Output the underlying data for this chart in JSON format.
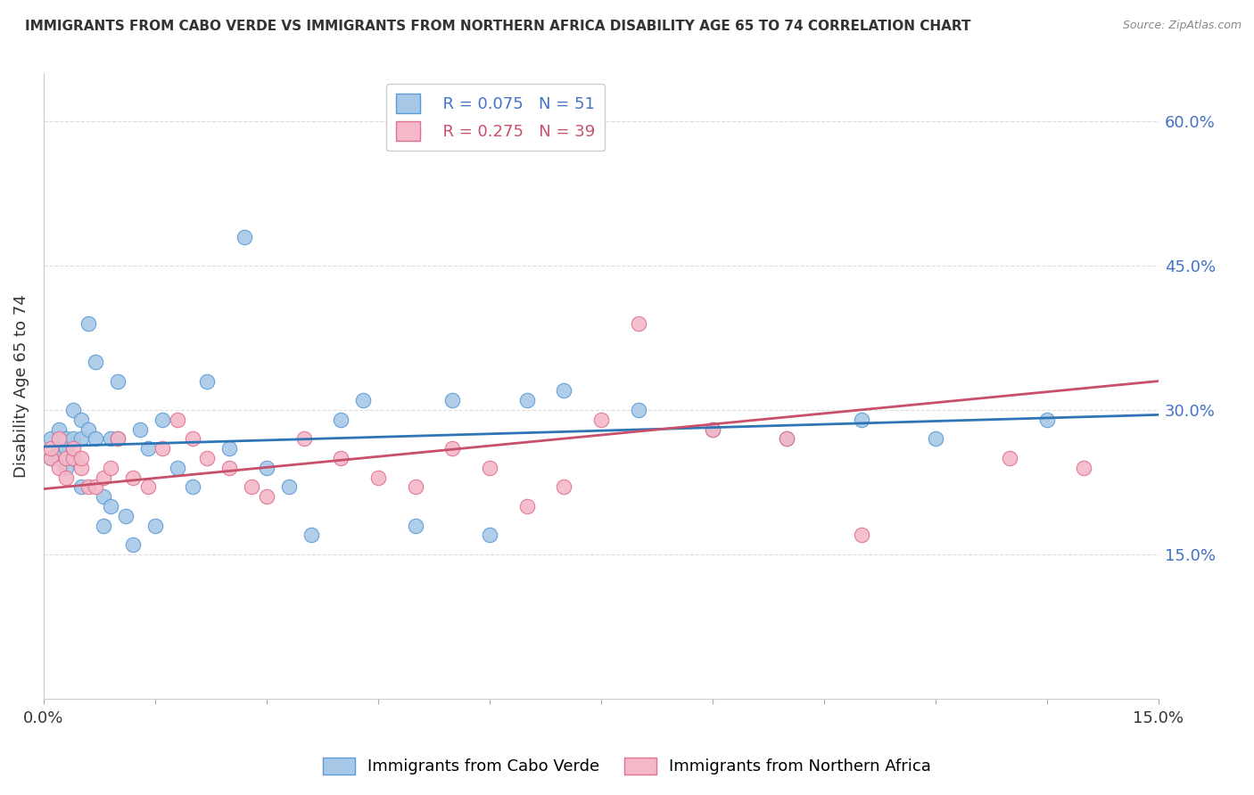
{
  "title": "IMMIGRANTS FROM CABO VERDE VS IMMIGRANTS FROM NORTHERN AFRICA DISABILITY AGE 65 TO 74 CORRELATION CHART",
  "source": "Source: ZipAtlas.com",
  "ylabel": "Disability Age 65 to 74",
  "legend1_R": "0.075",
  "legend1_N": "51",
  "legend2_R": "0.275",
  "legend2_N": "39",
  "cabo_verde_color": "#A8C8E8",
  "cabo_verde_edge_color": "#5B9BD5",
  "cabo_verde_line_color": "#2E75B6",
  "northern_africa_color": "#F4B8C8",
  "northern_africa_edge_color": "#E07090",
  "northern_africa_line_color": "#C9506A",
  "cabo_verde_x": [
    0.001,
    0.001,
    0.002,
    0.002,
    0.002,
    0.003,
    0.003,
    0.003,
    0.004,
    0.004,
    0.004,
    0.005,
    0.005,
    0.005,
    0.006,
    0.006,
    0.007,
    0.007,
    0.008,
    0.008,
    0.009,
    0.009,
    0.01,
    0.01,
    0.011,
    0.012,
    0.013,
    0.014,
    0.015,
    0.016,
    0.018,
    0.02,
    0.022,
    0.025,
    0.027,
    0.03,
    0.033,
    0.036,
    0.04,
    0.043,
    0.05,
    0.055,
    0.06,
    0.065,
    0.07,
    0.08,
    0.09,
    0.1,
    0.11,
    0.12,
    0.135
  ],
  "cabo_verde_y": [
    0.27,
    0.25,
    0.28,
    0.26,
    0.25,
    0.26,
    0.27,
    0.24,
    0.3,
    0.27,
    0.25,
    0.29,
    0.22,
    0.27,
    0.39,
    0.28,
    0.35,
    0.27,
    0.21,
    0.18,
    0.27,
    0.2,
    0.33,
    0.27,
    0.19,
    0.16,
    0.28,
    0.26,
    0.18,
    0.29,
    0.24,
    0.22,
    0.33,
    0.26,
    0.48,
    0.24,
    0.22,
    0.17,
    0.29,
    0.31,
    0.18,
    0.31,
    0.17,
    0.31,
    0.32,
    0.3,
    0.28,
    0.27,
    0.29,
    0.27,
    0.29
  ],
  "northern_africa_x": [
    0.001,
    0.001,
    0.002,
    0.002,
    0.003,
    0.003,
    0.004,
    0.004,
    0.005,
    0.005,
    0.006,
    0.007,
    0.008,
    0.009,
    0.01,
    0.012,
    0.014,
    0.016,
    0.018,
    0.02,
    0.022,
    0.025,
    0.028,
    0.03,
    0.035,
    0.04,
    0.045,
    0.05,
    0.055,
    0.06,
    0.065,
    0.07,
    0.075,
    0.08,
    0.09,
    0.1,
    0.11,
    0.13,
    0.14
  ],
  "northern_africa_y": [
    0.25,
    0.26,
    0.24,
    0.27,
    0.25,
    0.23,
    0.25,
    0.26,
    0.24,
    0.25,
    0.22,
    0.22,
    0.23,
    0.24,
    0.27,
    0.23,
    0.22,
    0.26,
    0.29,
    0.27,
    0.25,
    0.24,
    0.22,
    0.21,
    0.27,
    0.25,
    0.23,
    0.22,
    0.26,
    0.24,
    0.2,
    0.22,
    0.29,
    0.39,
    0.28,
    0.27,
    0.17,
    0.25,
    0.24
  ],
  "cabo_line_x0": 0.0,
  "cabo_line_y0": 0.262,
  "cabo_line_x1": 0.15,
  "cabo_line_y1": 0.295,
  "na_line_x0": 0.0,
  "na_line_y0": 0.218,
  "na_line_x1": 0.15,
  "na_line_y1": 0.33,
  "xlim": [
    0.0,
    0.15
  ],
  "ylim": [
    0.0,
    0.65
  ],
  "yticks": [
    0.15,
    0.3,
    0.45,
    0.6
  ],
  "xticks": [
    0.0,
    0.015,
    0.03,
    0.045,
    0.06,
    0.075,
    0.09,
    0.105,
    0.12,
    0.135,
    0.15
  ],
  "background_color": "#FFFFFF",
  "grid_color": "#DDDDDD",
  "legend_text_color_blue": "#4472C4",
  "legend_text_color_pink": "#C9506A",
  "right_axis_color": "#4472C4"
}
